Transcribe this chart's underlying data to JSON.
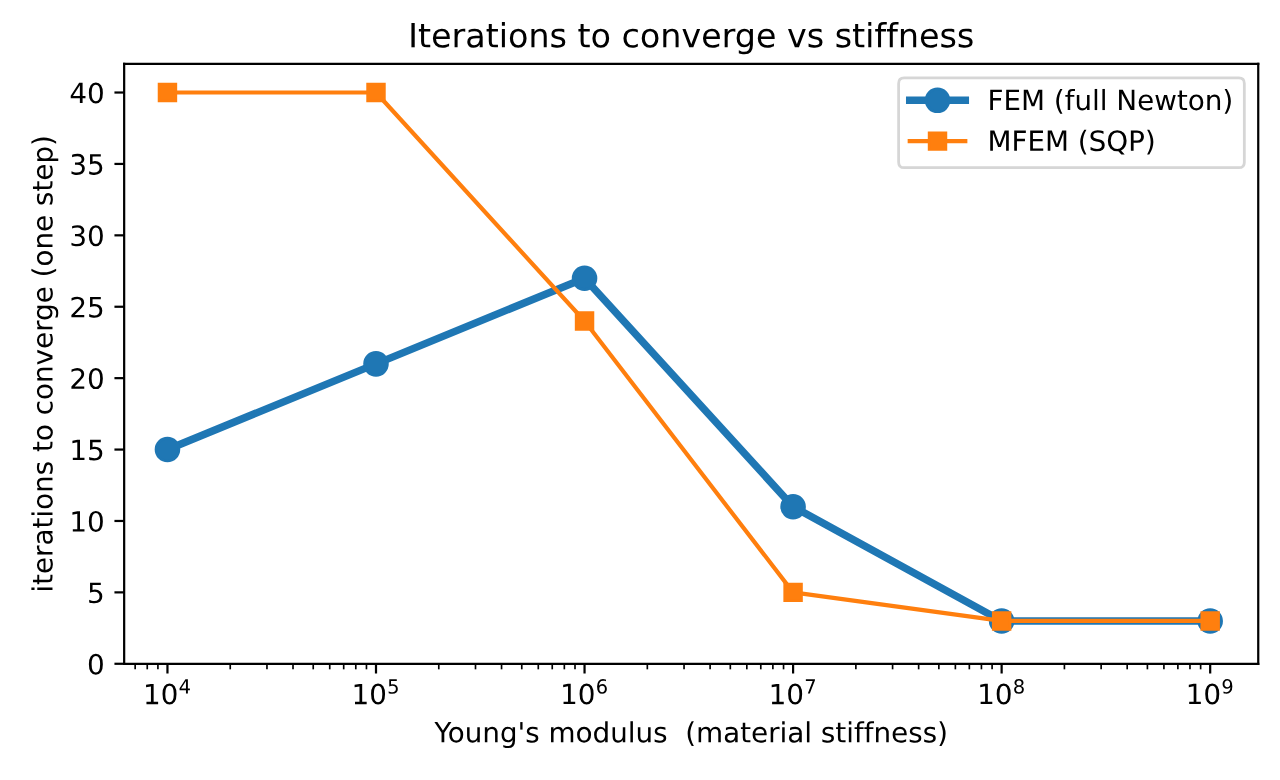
{
  "chart_data": {
    "type": "line",
    "title": "Iterations to converge vs stiffness",
    "xlabel": "Young's modulus  (material stiffness)",
    "ylabel": "iterations to converge (one step)",
    "x": [
      10000,
      100000,
      1000000,
      10000000,
      100000000,
      1000000000
    ],
    "series": [
      {
        "name": "FEM (full Newton)",
        "color": "#1f77b4",
        "marker": "circle",
        "values": [
          15,
          21,
          27,
          11,
          3,
          3
        ]
      },
      {
        "name": "MFEM (SQP)",
        "color": "#ff7f0e",
        "marker": "square",
        "values": [
          40,
          40,
          24,
          5,
          3,
          3
        ]
      }
    ],
    "log": "x",
    "xlim": [
      6200,
      1700000000
    ],
    "xticks": [
      {
        "value": 10000,
        "label": "10$^{4}$"
      },
      {
        "value": 100000,
        "label": "10$^{5}$"
      },
      {
        "value": 1000000,
        "label": "10$^{6}$"
      },
      {
        "value": 10000000,
        "label": "10$^{7}$"
      },
      {
        "value": 100000000,
        "label": "10$^{8}$"
      },
      {
        "value": 1000000000,
        "label": "10$^{9}$"
      }
    ],
    "ylim": [
      0,
      42
    ],
    "yticks": [
      0,
      5,
      10,
      15,
      20,
      25,
      30,
      35,
      40
    ],
    "grid": false,
    "legend": "top right"
  }
}
